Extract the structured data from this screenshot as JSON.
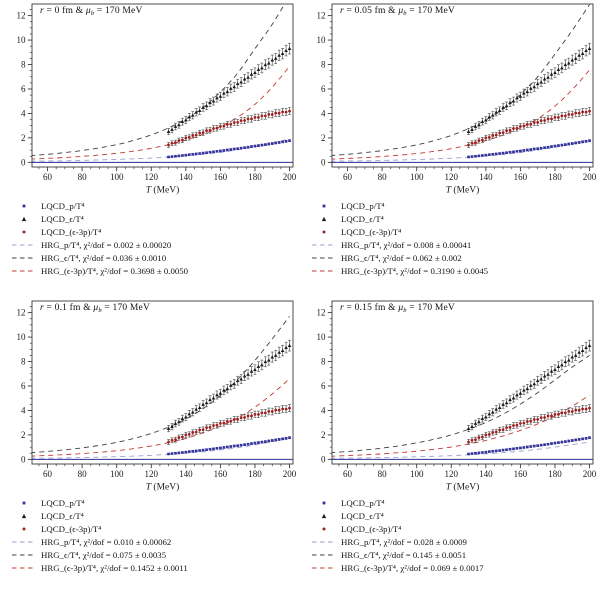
{
  "chart_data": {
    "type": "scatter",
    "x_axis": {
      "label": "T (MeV)",
      "range": [
        51,
        202
      ],
      "major_ticks": [
        60,
        80,
        100,
        120,
        140,
        160,
        180,
        200
      ],
      "minor_step": 5
    },
    "y_axis": {
      "label": "",
      "range": [
        -0.38,
        12.95
      ],
      "major_ticks": [
        0,
        2,
        4,
        6,
        8,
        10,
        12
      ],
      "minor_step": 0.5
    },
    "colors": {
      "p_point": "#3232a0",
      "e_point": "#1c1c1c",
      "e3p_point": "#9e2222",
      "p_curve": "#9a9ed6",
      "e_curve": "#3f3f46",
      "e3p_curve": "#c23b34",
      "err_bar": "#5a5a5a",
      "frame": "#3a3a3a",
      "zero_line": "#2c2c96",
      "text": "#1a1a1a"
    },
    "lqcd": {
      "T": [
        130,
        132,
        134,
        136,
        138,
        140,
        142,
        144,
        146,
        148,
        150,
        152,
        154,
        156,
        158,
        160,
        162,
        164,
        166,
        168,
        170,
        172,
        174,
        176,
        178,
        180,
        182,
        184,
        186,
        188,
        190,
        192,
        194,
        196,
        198,
        200
      ],
      "p": [
        0.44,
        0.47,
        0.5,
        0.53,
        0.56,
        0.59,
        0.63,
        0.66,
        0.69,
        0.72,
        0.76,
        0.79,
        0.83,
        0.86,
        0.9,
        0.93,
        0.97,
        1.01,
        1.05,
        1.09,
        1.12,
        1.16,
        1.2,
        1.24,
        1.29,
        1.33,
        1.37,
        1.41,
        1.45,
        1.5,
        1.54,
        1.59,
        1.63,
        1.68,
        1.72,
        1.77
      ],
      "p_err_range": [
        0.05,
        0.08
      ],
      "e": [
        2.52,
        2.68,
        2.93,
        3.07,
        3.33,
        3.46,
        3.71,
        3.85,
        4.1,
        4.23,
        4.49,
        4.62,
        4.88,
        5.01,
        5.26,
        5.4,
        5.65,
        5.78,
        6.04,
        6.17,
        6.43,
        6.56,
        6.81,
        6.95,
        7.2,
        7.34,
        7.59,
        7.72,
        7.98,
        8.11,
        8.36,
        8.5,
        8.75,
        8.89,
        9.14,
        9.3
      ],
      "e_err_range": [
        0.26,
        0.44
      ],
      "e3p": [
        1.42,
        1.56,
        1.61,
        1.78,
        1.83,
        2.0,
        2.04,
        2.2,
        2.24,
        2.4,
        2.43,
        2.59,
        2.62,
        2.77,
        2.79,
        2.94,
        2.96,
        3.1,
        3.12,
        3.26,
        3.27,
        3.41,
        3.42,
        3.55,
        3.55,
        3.68,
        3.68,
        3.8,
        3.8,
        3.92,
        3.91,
        4.03,
        4.02,
        4.13,
        4.11,
        4.19
      ],
      "e3p_err_range": [
        0.2,
        0.29
      ]
    },
    "hrg_T": [
      50,
      60,
      70,
      80,
      90,
      100,
      110,
      120,
      130,
      140,
      150,
      160,
      170,
      180,
      190,
      200
    ],
    "panels": [
      {
        "title_r": "r",
        "title_mid": " = 0 fm & ",
        "title_mu": "μ",
        "title_sub": "b",
        "title_tail": " = 170 MeV",
        "hrg": {
          "p": [
            0.09,
            0.11,
            0.13,
            0.16,
            0.2,
            0.24,
            0.29,
            0.35,
            0.43,
            0.53,
            0.66,
            0.82,
            1.03,
            1.28,
            1.57,
            1.92
          ],
          "e": [
            0.55,
            0.66,
            0.8,
            0.97,
            1.18,
            1.45,
            1.8,
            2.24,
            2.82,
            3.55,
            4.5,
            5.75,
            7.3,
            9.3,
            11.3,
            13.6
          ],
          "e3p": [
            0.27,
            0.33,
            0.4,
            0.49,
            0.6,
            0.74,
            0.92,
            1.15,
            1.44,
            1.82,
            2.3,
            2.92,
            3.7,
            4.75,
            6.15,
            7.85
          ]
        },
        "legend": [
          {
            "series": "p",
            "kind": "point",
            "label": "LQCD_p/T⁴"
          },
          {
            "series": "e",
            "kind": "point",
            "label": "LQCD_ϵ/T⁴"
          },
          {
            "series": "e3p",
            "kind": "point",
            "label": "LQCD_(ϵ-3p)/T⁴"
          },
          {
            "series": "p",
            "kind": "dash",
            "label": "HRG_p/T⁴, χ²/dof = 0.002 ± 0.00020"
          },
          {
            "series": "e",
            "kind": "dash",
            "label": "HRG_ϵ/T⁴, χ²/dof = 0.036 ± 0.0010"
          },
          {
            "series": "e3p",
            "kind": "dash",
            "label": "HRG_(ϵ-3p)/T⁴, χ²/dof = 0.3698 ± 0.0050"
          }
        ]
      },
      {
        "title_r": "r",
        "title_mid": " = 0.05 fm & ",
        "title_mu": "μ",
        "title_sub": "b",
        "title_tail": " = 170 MeV",
        "hrg": {
          "p": [
            0.09,
            0.11,
            0.13,
            0.16,
            0.19,
            0.23,
            0.28,
            0.34,
            0.42,
            0.52,
            0.64,
            0.8,
            1.0,
            1.24,
            1.52,
            1.85
          ],
          "e": [
            0.55,
            0.66,
            0.8,
            0.96,
            1.17,
            1.43,
            1.77,
            2.2,
            2.76,
            3.46,
            4.37,
            5.55,
            7.0,
            8.85,
            10.8,
            12.9
          ],
          "e3p": [
            0.26,
            0.32,
            0.39,
            0.48,
            0.59,
            0.72,
            0.9,
            1.12,
            1.41,
            1.77,
            2.24,
            2.83,
            3.57,
            4.6,
            5.95,
            7.55
          ]
        },
        "legend": [
          {
            "series": "p",
            "kind": "point",
            "label": "LQCD_p/T⁴"
          },
          {
            "series": "e",
            "kind": "point",
            "label": "LQCD_ϵ/T⁴"
          },
          {
            "series": "e3p",
            "kind": "point",
            "label": "LQCD_(ϵ-3p)/T⁴"
          },
          {
            "series": "p",
            "kind": "dash",
            "label": "HRG_p/T⁴, χ²/dof = 0.008 ± 0.00041"
          },
          {
            "series": "e",
            "kind": "dash",
            "label": "HRG_ϵ/T⁴, χ²/dof = 0.062 ± 0.002"
          },
          {
            "series": "e3p",
            "kind": "dash",
            "label": "HRG_(ϵ-3p)/T⁴, χ²/dof = 0.3190 ± 0.0045"
          }
        ]
      },
      {
        "title_r": "r",
        "title_mid": " = 0.1 fm & ",
        "title_mu": "μ",
        "title_sub": "b",
        "title_tail": " = 170 MeV",
        "hrg": {
          "p": [
            0.09,
            0.1,
            0.12,
            0.15,
            0.18,
            0.22,
            0.27,
            0.33,
            0.41,
            0.5,
            0.62,
            0.77,
            0.95,
            1.18,
            1.45,
            1.75
          ],
          "e": [
            0.54,
            0.65,
            0.78,
            0.94,
            1.14,
            1.39,
            1.71,
            2.12,
            2.64,
            3.3,
            4.15,
            5.22,
            6.55,
            8.1,
            9.85,
            11.7
          ],
          "e3p": [
            0.26,
            0.32,
            0.39,
            0.47,
            0.58,
            0.71,
            0.88,
            1.09,
            1.36,
            1.71,
            2.16,
            2.71,
            3.4,
            4.27,
            5.35,
            6.6
          ]
        },
        "legend": [
          {
            "series": "p",
            "kind": "point",
            "label": "LQCD_p/T⁴"
          },
          {
            "series": "e",
            "kind": "point",
            "label": "LQCD_ϵ/T⁴"
          },
          {
            "series": "e3p",
            "kind": "point",
            "label": "LQCD_(ϵ-3p)/T⁴"
          },
          {
            "series": "p",
            "kind": "dash",
            "label": "HRG_p/T⁴, χ²/dof = 0.010 ± 0.00062"
          },
          {
            "series": "e",
            "kind": "dash",
            "label": "HRG_ϵ/T⁴, χ²/dof = 0.075 ± 0.0035"
          },
          {
            "series": "e3p",
            "kind": "dash",
            "label": "HRG_(ϵ-3p)/T⁴, χ²/dof = 0.1452 ± 0.0011"
          }
        ]
      },
      {
        "title_r": "r",
        "title_mid": " = 0.15 fm & ",
        "title_mu": "μ",
        "title_sub": "b",
        "title_tail": " = 170 MeV",
        "hrg": {
          "p": [
            0.09,
            0.1,
            0.12,
            0.14,
            0.17,
            0.21,
            0.25,
            0.3,
            0.37,
            0.45,
            0.55,
            0.67,
            0.82,
            1.0,
            1.2,
            1.42
          ],
          "e": [
            0.54,
            0.64,
            0.77,
            0.92,
            1.11,
            1.35,
            1.64,
            2.0,
            2.46,
            3.02,
            3.7,
            4.52,
            5.45,
            6.5,
            7.55,
            8.5
          ],
          "e3p": [
            0.25,
            0.31,
            0.37,
            0.45,
            0.55,
            0.67,
            0.82,
            1.01,
            1.25,
            1.55,
            1.92,
            2.37,
            2.9,
            3.55,
            4.35,
            5.25
          ]
        },
        "legend": [
          {
            "series": "p",
            "kind": "point",
            "label": "LQCD_p/T⁴"
          },
          {
            "series": "e",
            "kind": "point",
            "label": "LQCD_ϵ/T⁴"
          },
          {
            "series": "e3p",
            "kind": "point",
            "label": "LQCD_(ϵ-3p)/T⁴"
          },
          {
            "series": "p",
            "kind": "dash",
            "label": "HRG_p/T⁴, χ²/dof = 0.028 ± 0.0009"
          },
          {
            "series": "e",
            "kind": "dash",
            "label": "HRG_ϵ/T⁴, χ²/dof = 0.145 ± 0.0051"
          },
          {
            "series": "e3p",
            "kind": "dash",
            "label": "HRG_(ϵ-3p)/T⁴, χ²/dof = 0.069 ± 0.0017"
          }
        ]
      }
    ]
  }
}
